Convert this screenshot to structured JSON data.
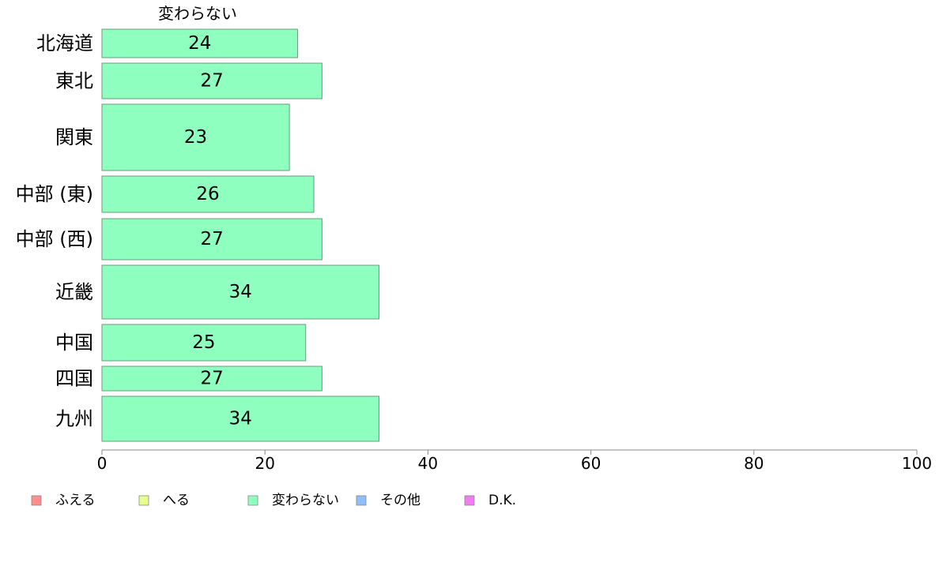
{
  "chart_data": {
    "type": "bar",
    "orientation": "horizontal",
    "column_header": "変わらない",
    "categories": [
      "北海道",
      "東北",
      "関東",
      "中部 (東)",
      "中部 (西)",
      "近畿",
      "中国",
      "四国",
      "九州"
    ],
    "series": [
      {
        "name": "変わらない",
        "values": [
          24,
          27,
          23,
          26,
          27,
          34,
          25,
          27,
          34
        ]
      }
    ],
    "bar_labels": [
      "24",
      "27",
      "23",
      "26",
      "27",
      "34",
      "25",
      "27",
      "34"
    ],
    "xlim": [
      0,
      100
    ],
    "xticks": [
      0,
      20,
      40,
      60,
      80,
      100
    ],
    "grid": false,
    "legend_position": "bottom",
    "legend": [
      {
        "label": "ふえる",
        "color": "#ff8f8f"
      },
      {
        "label": "へる",
        "color": "#e6ff8f"
      },
      {
        "label": "変わらない",
        "color": "#8fffbf"
      },
      {
        "label": "その他",
        "color": "#8fbfff"
      },
      {
        "label": "D.K.",
        "color": "#ef7fef"
      }
    ],
    "bar_color": "#8fffbf",
    "bar_stroke": "#6b9a7c"
  }
}
